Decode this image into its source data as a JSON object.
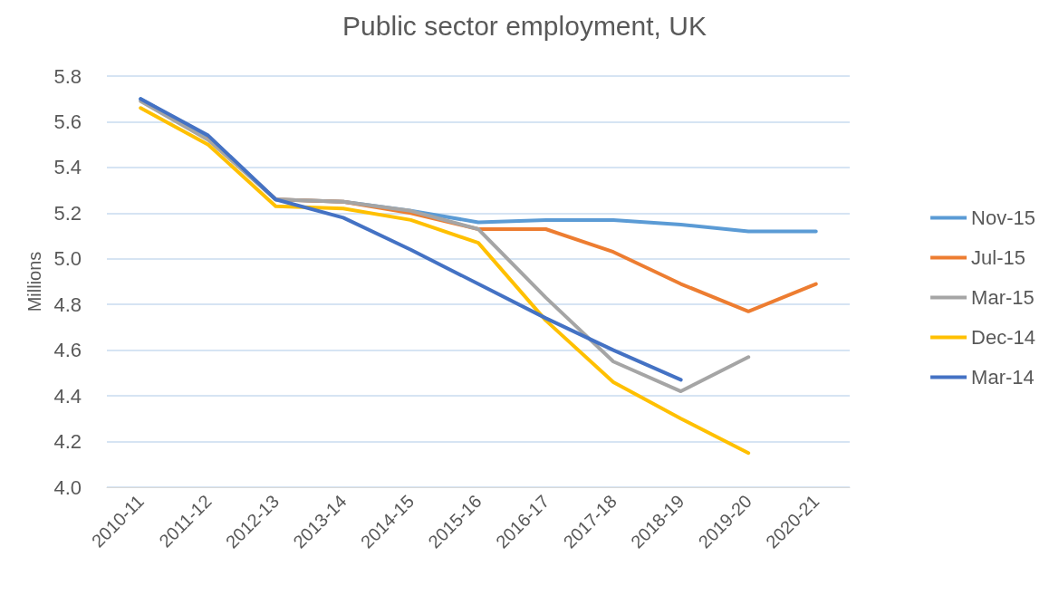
{
  "chart_data": {
    "type": "line",
    "title": "Public sector employment, UK",
    "ylabel": "Millions",
    "categories": [
      "2010-11",
      "2011-12",
      "2012-13",
      "2013-14",
      "2014-15",
      "2015-16",
      "2016-17",
      "2017-18",
      "2018-19",
      "2019-20",
      "2020-21"
    ],
    "series": [
      {
        "name": "Nov-15",
        "color": "#5b9bd5",
        "values": [
          5.7,
          5.53,
          5.26,
          5.25,
          5.21,
          5.16,
          5.17,
          5.17,
          5.15,
          5.12,
          5.12
        ]
      },
      {
        "name": "Jul-15",
        "color": "#ed7d31",
        "values": [
          null,
          5.53,
          5.26,
          5.25,
          5.2,
          5.13,
          5.13,
          5.03,
          4.89,
          4.77,
          4.89
        ]
      },
      {
        "name": "Mar-15",
        "color": "#a5a5a5",
        "values": [
          5.69,
          5.52,
          5.26,
          5.25,
          5.21,
          5.13,
          4.83,
          4.55,
          4.42,
          4.57,
          null
        ]
      },
      {
        "name": "Dec-14",
        "color": "#ffc000",
        "values": [
          5.66,
          5.5,
          5.23,
          5.22,
          5.17,
          5.07,
          4.73,
          4.46,
          4.3,
          4.15,
          null
        ]
      },
      {
        "name": "Mar-14",
        "color": "#4472c4",
        "values": [
          5.7,
          5.54,
          5.26,
          5.18,
          5.04,
          4.89,
          4.74,
          4.6,
          4.47,
          null,
          null
        ]
      }
    ],
    "ylim": [
      4.0,
      5.8
    ],
    "yticks": [
      {
        "value": 4.0,
        "label": "4.0"
      },
      4.2,
      4.4,
      4.6,
      4.8,
      {
        "value": 5.0,
        "label": "5.0"
      },
      5.2,
      5.4,
      5.6,
      5.8
    ],
    "grid": "y",
    "legend": "right",
    "marker": "none",
    "line_style": "solid"
  }
}
